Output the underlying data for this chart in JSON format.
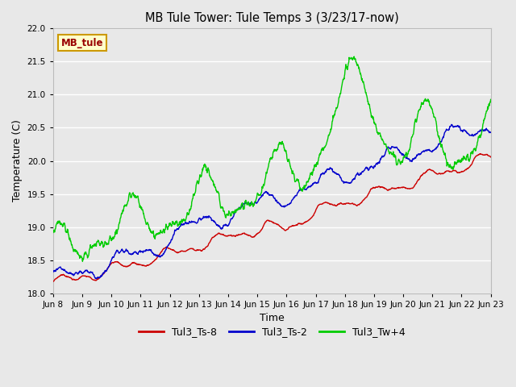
{
  "title": "MB Tule Tower: Tule Temps 3 (3/23/17-now)",
  "xlabel": "Time",
  "ylabel": "Temperature (C)",
  "ylim": [
    18.0,
    22.0
  ],
  "yticks": [
    18.0,
    18.5,
    19.0,
    19.5,
    20.0,
    20.5,
    21.0,
    21.5,
    22.0
  ],
  "x_labels": [
    "Jun 8",
    "Jun 9",
    "Jun 10",
    "Jun 11",
    "Jun 12",
    "Jun 13",
    "Jun 14",
    "Jun 15",
    "Jun 16",
    "Jun 17",
    "Jun 18",
    "Jun 19",
    "Jun 20",
    "Jun 21",
    "Jun 22",
    "Jun 23"
  ],
  "legend_labels": [
    "Tul3_Ts-8",
    "Tul3_Ts-2",
    "Tul3_Tw+4"
  ],
  "legend_colors": [
    "#cc0000",
    "#0000cc",
    "#00cc00"
  ],
  "label_box_text": "MB_tule",
  "label_box_facecolor": "#ffffcc",
  "label_box_edgecolor": "#cc9900",
  "label_box_textcolor": "#990000",
  "bg_color": "#e8e8e8",
  "line_width": 1.0,
  "n_points": 1500,
  "figsize": [
    6.4,
    4.8
  ],
  "dpi": 100
}
